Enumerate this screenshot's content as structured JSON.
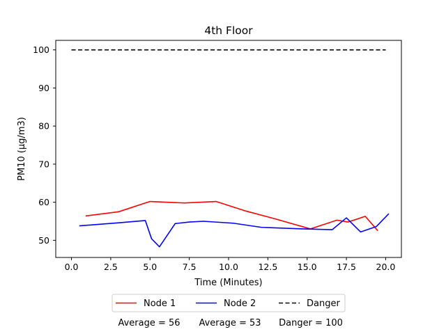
{
  "chart_data": {
    "type": "line",
    "title": "4th Floor",
    "xlabel": "Time (Minutes)",
    "ylabel": "PM10 (μg/m3)",
    "xlim": [
      -1.0,
      21.0
    ],
    "ylim": [
      45.5,
      102.5
    ],
    "xticks": [
      0.0,
      2.5,
      5.0,
      7.5,
      10.0,
      12.5,
      15.0,
      17.5,
      20.0
    ],
    "xtick_labels": [
      "0.0",
      "2.5",
      "5.0",
      "7.5",
      "10.0",
      "12.5",
      "15.0",
      "17.5",
      "20.0"
    ],
    "yticks": [
      50,
      60,
      70,
      80,
      90,
      100
    ],
    "ytick_labels": [
      "50",
      "60",
      "70",
      "80",
      "90",
      "100"
    ],
    "grid": false,
    "legend_position": "below",
    "series": [
      {
        "name": "Node 1",
        "color": "#ff0000",
        "style": "solid",
        "x": [
          0.9,
          3.0,
          5.0,
          7.2,
          9.2,
          11.0,
          13.0,
          15.2,
          16.9,
          17.6,
          18.7,
          19.5
        ],
        "y": [
          56.4,
          57.5,
          60.2,
          59.8,
          60.2,
          57.8,
          55.6,
          53.0,
          55.3,
          54.8,
          56.3,
          52.5
        ]
      },
      {
        "name": "Node 2",
        "color": "#0000ff",
        "style": "solid",
        "x": [
          0.5,
          3.0,
          4.7,
          5.1,
          5.6,
          6.6,
          7.5,
          8.4,
          10.3,
          12.1,
          14.7,
          16.6,
          17.5,
          18.4,
          19.4,
          20.2
        ],
        "y": [
          53.8,
          54.6,
          55.2,
          50.4,
          48.3,
          54.4,
          54.8,
          55.0,
          54.5,
          53.4,
          53.0,
          52.8,
          55.9,
          52.2,
          53.6,
          57.0
        ]
      },
      {
        "name": "Danger",
        "color": "#000000",
        "style": "dashed",
        "x": [
          0.0,
          20.0
        ],
        "y": [
          100,
          100
        ]
      }
    ],
    "stats": [
      "Average = 56",
      "Average = 53",
      "Danger = 100"
    ]
  }
}
